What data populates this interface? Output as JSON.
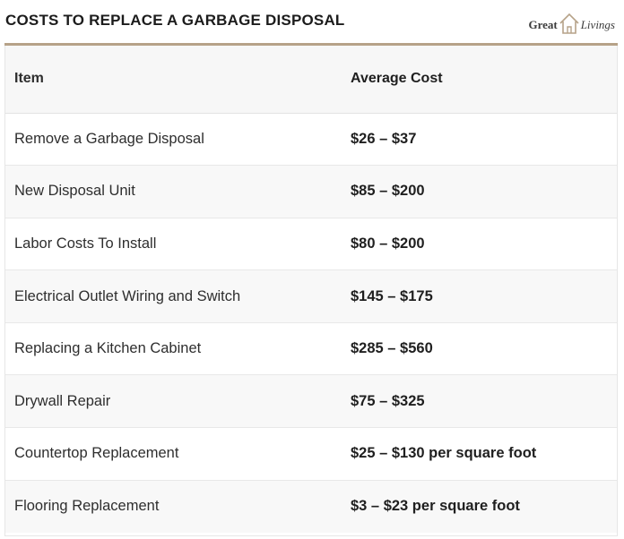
{
  "header": {
    "title": "COSTS TO REPLACE A GARBAGE DISPOSAL",
    "logo_left": "Great",
    "logo_right": "Livings"
  },
  "table": {
    "columns": [
      "Item",
      "Average Cost"
    ],
    "rows": [
      {
        "item": "Remove a Garbage Disposal",
        "cost": "$26 – $37"
      },
      {
        "item": "New Disposal Unit",
        "cost": "$85 – $200"
      },
      {
        "item": "Labor Costs To Install",
        "cost": "$80 – $200"
      },
      {
        "item": "Electrical Outlet Wiring and Switch",
        "cost": "$145 – $175"
      },
      {
        "item": "Replacing a Kitchen Cabinet",
        "cost": "$285 – $560"
      },
      {
        "item": "Drywall Repair",
        "cost": "$75 – $325"
      },
      {
        "item": "Countertop Replacement",
        "cost": "$25 – $130 per square foot"
      },
      {
        "item": "Flooring Replacement",
        "cost": "$3 – $23 per square foot"
      }
    ]
  },
  "colors": {
    "accent": "#b6a288",
    "header_text": "#a8906f",
    "stripe": "#f8f8f8"
  }
}
